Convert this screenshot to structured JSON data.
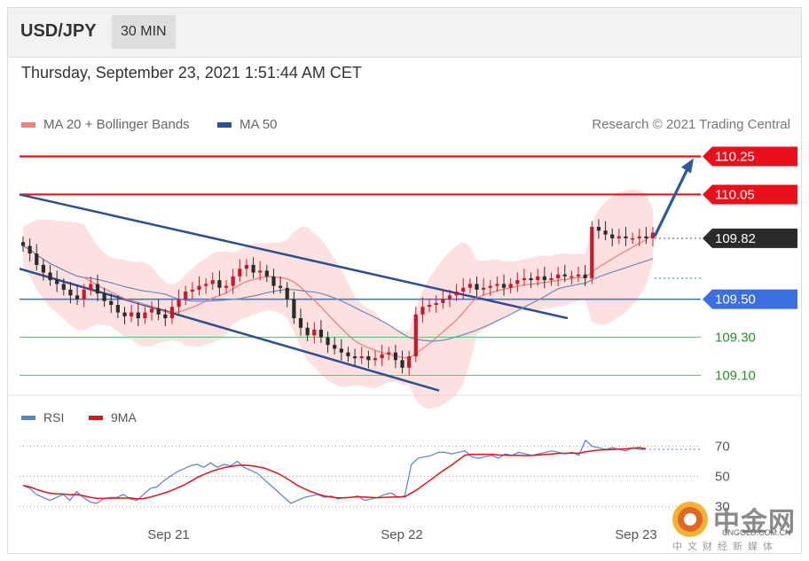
{
  "header": {
    "pair": "USD/JPY",
    "timeframe": "30 MIN"
  },
  "datetime": "Thursday, September 23, 2021 1:51:44 AM CET",
  "legend": {
    "bb_label": "MA 20 + Bollinger Bands",
    "ma50_label": "MA 50",
    "credit": "Research © 2021 Trading Central"
  },
  "rsi_legend": {
    "rsi_label": "RSI",
    "ma9_label": "9MA"
  },
  "colors": {
    "resistance": "#e8101a",
    "support": "#3b6fe0",
    "current": "#2a2a2a",
    "target_green": "#2e8b2e",
    "channel": "#2e4f8f",
    "bollinger": "#f9c9c6",
    "ma20": "#f08080",
    "ma50": "#7a90b8",
    "up_candle": "#c8192a",
    "down_candle": "#2b2b2b",
    "rsi": "#5a7fd6",
    "ma9": "#e8101a",
    "arrow": "#2c5aa0"
  },
  "icons": {
    "watermark_logo": "cngold-coin-icon",
    "target_arrow": "up-arrow-icon"
  },
  "watermark": {
    "name": "中金网",
    "url": "CNGOLD.COM.CN",
    "tagline": "中文财经新媒体"
  },
  "chart_data": [
    {
      "type": "candlestick",
      "title": "USD/JPY",
      "timeframe": "30 MIN",
      "ylim": [
        109.0,
        110.35
      ],
      "x_ticks": [
        "Sep 21",
        "Sep 22",
        "Sep 23"
      ],
      "levels": [
        {
          "label": "110.25",
          "value": 110.25,
          "kind": "resistance"
        },
        {
          "label": "110.05",
          "value": 110.05,
          "kind": "resistance"
        },
        {
          "label": "109.82",
          "value": 109.82,
          "kind": "current"
        },
        {
          "label": "109.50",
          "value": 109.5,
          "kind": "support"
        },
        {
          "label": "109.30",
          "value": 109.3,
          "kind": "target"
        },
        {
          "label": "109.10",
          "value": 109.1,
          "kind": "target"
        }
      ],
      "close_path": [
        109.78,
        109.74,
        109.68,
        109.64,
        109.6,
        109.58,
        109.55,
        109.52,
        109.5,
        109.55,
        109.58,
        109.53,
        109.49,
        109.47,
        109.43,
        109.41,
        109.43,
        109.4,
        109.43,
        109.45,
        109.42,
        109.4,
        109.46,
        109.5,
        109.54,
        109.55,
        109.57,
        109.58,
        109.6,
        109.56,
        109.57,
        109.62,
        109.66,
        109.68,
        109.64,
        109.65,
        109.62,
        109.57,
        109.56,
        109.5,
        109.4,
        109.35,
        109.31,
        109.34,
        109.3,
        109.26,
        109.24,
        109.22,
        109.2,
        109.19,
        109.2,
        109.18,
        109.19,
        109.21,
        109.22,
        109.18,
        109.14,
        109.2,
        109.42,
        109.46,
        109.47,
        109.48,
        109.5,
        109.52,
        109.54,
        109.56,
        109.58,
        109.55,
        109.56,
        109.57,
        109.58,
        109.56,
        109.58,
        109.6,
        109.61,
        109.6,
        109.62,
        109.6,
        109.61,
        109.63,
        109.62,
        109.62,
        109.63,
        109.61,
        109.88,
        109.86,
        109.84,
        109.82,
        109.83,
        109.82,
        109.82,
        109.83,
        109.82,
        109.85
      ],
      "annotation": "target arrow from 109.82 toward 110.25"
    },
    {
      "type": "line",
      "series": [
        {
          "name": "RSI"
        },
        {
          "name": "9MA"
        }
      ],
      "ylim": [
        22,
        78
      ],
      "y_ticks": [
        "70",
        "50",
        "30"
      ],
      "rsi_path": [
        44,
        42,
        38,
        36,
        34,
        36,
        38,
        34,
        40,
        36,
        33,
        32,
        35,
        36,
        36,
        38,
        35,
        34,
        38,
        42,
        43,
        47,
        50,
        53,
        55,
        57,
        58,
        56,
        59,
        56,
        58,
        57,
        60,
        56,
        54,
        52,
        48,
        44,
        40,
        36,
        32,
        34,
        36,
        37,
        38,
        36,
        37,
        35,
        36,
        36,
        37,
        34,
        35,
        36,
        38,
        39,
        36,
        37,
        58,
        62,
        63,
        64,
        66,
        66,
        65,
        66,
        67,
        63,
        62,
        63,
        64,
        62,
        65,
        64,
        66,
        65,
        64,
        65,
        66,
        67,
        66,
        65,
        66,
        64,
        74,
        70,
        69,
        68,
        69,
        68,
        67,
        69,
        68,
        68
      ]
    }
  ]
}
